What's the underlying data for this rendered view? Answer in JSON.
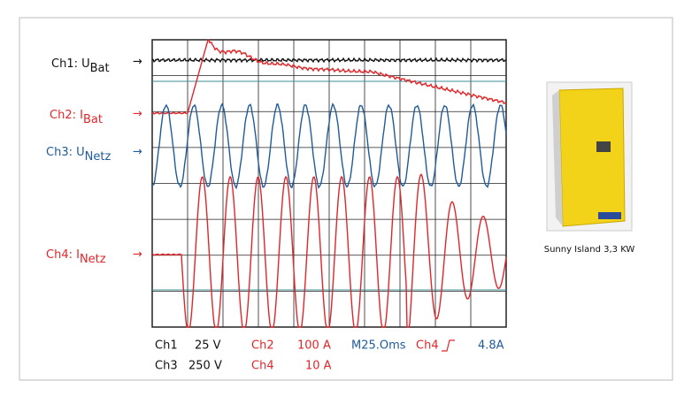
{
  "channels": [
    {
      "name": "Ch1: U",
      "sub": "Bat"
    },
    {
      "name": "Ch2: I",
      "sub": "Bat"
    },
    {
      "name": "Ch3: U",
      "sub": "Netz"
    },
    {
      "name": "Ch4: I",
      "sub": "Netz"
    }
  ],
  "settings": {
    "row1": [
      "Ch1",
      "25 V",
      "Ch2",
      "100 A",
      "M25.Oms",
      "Ch4",
      "4.8A"
    ],
    "row2": [
      "Ch3",
      "250 V",
      "Ch4",
      "10 A"
    ]
  },
  "caption": "Sunny Island 3,3 KW"
}
